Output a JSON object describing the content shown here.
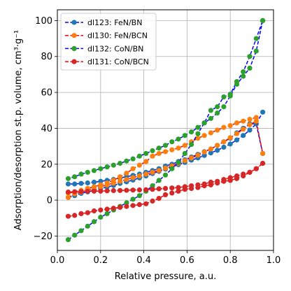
{
  "chart_data": {
    "type": "scatter",
    "xlabel": "Relative pressure, a.u.",
    "ylabel": "Adsorption/desorption st.p. volume, cm³·g⁻¹",
    "xlim": [
      0.0,
      1.0
    ],
    "ylim": [
      -28,
      106
    ],
    "xticks": [
      "0.0",
      "0.2",
      "0.4",
      "0.6",
      "0.8",
      "1.0"
    ],
    "yticks": [
      "−20",
      "0",
      "20",
      "40",
      "60",
      "80",
      "100"
    ],
    "grid": true,
    "legend_position": "top-left",
    "series": [
      {
        "name": "dl123: FeN/BN",
        "marker_color": "#1f77b4",
        "line_color": "#0000ff",
        "adsorption": {
          "x": [
            0.05,
            0.08,
            0.11,
            0.14,
            0.17,
            0.2,
            0.23,
            0.26,
            0.29,
            0.32,
            0.35,
            0.38,
            0.41,
            0.44,
            0.47,
            0.5,
            0.53,
            0.56,
            0.59,
            0.62,
            0.65,
            0.68,
            0.71,
            0.74,
            0.77,
            0.8,
            0.83,
            0.86,
            0.89,
            0.92,
            0.95
          ],
          "y": [
            1.5,
            2.5,
            3.8,
            4.6,
            5.5,
            6.5,
            7.3,
            8.2,
            9.3,
            10.2,
            11.2,
            12.4,
            13.5,
            14.8,
            16.0,
            17.3,
            18.5,
            19.8,
            21.0,
            22.3,
            23.5,
            24.9,
            26.3,
            27.8,
            29.5,
            31.3,
            33.5,
            36.0,
            39.0,
            42.5,
            49.0
          ]
        },
        "desorption": {
          "x": [
            0.95,
            0.92,
            0.89,
            0.86,
            0.83,
            0.8,
            0.77,
            0.74,
            0.71,
            0.68,
            0.65,
            0.62,
            0.59,
            0.56,
            0.53,
            0.5,
            0.47,
            0.44,
            0.41,
            0.38,
            0.35,
            0.32,
            0.29,
            0.26,
            0.23,
            0.2,
            0.17,
            0.14,
            0.11,
            0.08,
            0.05
          ],
          "y": [
            26.0,
            42.5,
            42.5,
            40.0,
            37.5,
            34.5,
            32.5,
            30.5,
            28.5,
            27.0,
            25.5,
            24.0,
            22.5,
            21.5,
            20.0,
            19.0,
            17.5,
            16.5,
            15.5,
            14.5,
            13.8,
            13.0,
            12.3,
            11.5,
            11.0,
            10.5,
            10.0,
            9.6,
            9.3,
            9.0,
            9.0
          ]
        }
      },
      {
        "name": "dl130: FeN/BCN",
        "marker_color": "#ff7f0e",
        "line_color": "#ff0000",
        "adsorption": {
          "x": [
            0.05,
            0.08,
            0.11,
            0.14,
            0.17,
            0.2,
            0.23,
            0.26,
            0.29,
            0.32,
            0.35,
            0.38,
            0.41,
            0.44,
            0.47,
            0.5,
            0.53,
            0.56,
            0.59,
            0.62,
            0.65,
            0.68,
            0.71,
            0.74,
            0.77,
            0.8,
            0.83,
            0.86,
            0.89,
            0.92,
            0.95
          ],
          "y": [
            1.5,
            3.5,
            4.5,
            5.5,
            6.5,
            7.5,
            8.5,
            9.5,
            10.5,
            11.5,
            12.5,
            13.5,
            14.5,
            15.5,
            16.5,
            17.8,
            19.0,
            20.5,
            22.0,
            23.5,
            25.0,
            26.8,
            28.5,
            30.5,
            32.5,
            34.8,
            37.0,
            39.5,
            42.0,
            44.0,
            26.0
          ]
        },
        "desorption": {
          "x": [
            0.92,
            0.89,
            0.86,
            0.83,
            0.8,
            0.77,
            0.74,
            0.71,
            0.68,
            0.65,
            0.62,
            0.59,
            0.56,
            0.53,
            0.5,
            0.47,
            0.44,
            0.41,
            0.38,
            0.35,
            0.32,
            0.29,
            0.26,
            0.23,
            0.2,
            0.17,
            0.14,
            0.11,
            0.08,
            0.05
          ],
          "y": [
            46.0,
            45.0,
            44.0,
            43.0,
            41.5,
            40.5,
            39.0,
            37.5,
            36.0,
            34.5,
            32.5,
            30.5,
            29.0,
            28.0,
            27.0,
            26.0,
            24.5,
            21.5,
            19.5,
            17.5,
            15.0,
            13.0,
            11.0,
            9.5,
            8.5,
            7.5,
            6.5,
            5.5,
            4.5,
            4.0
          ]
        }
      },
      {
        "name": "dl132: CoN/BN",
        "marker_color": "#2ca02c",
        "line_color": "#0000ff",
        "adsorption": {
          "x": [
            0.05,
            0.08,
            0.11,
            0.14,
            0.17,
            0.2,
            0.23,
            0.26,
            0.29,
            0.32,
            0.35,
            0.38,
            0.41,
            0.44,
            0.47,
            0.5,
            0.53,
            0.56,
            0.59,
            0.62,
            0.65,
            0.68,
            0.71,
            0.74,
            0.77,
            0.8,
            0.83,
            0.86,
            0.89,
            0.92,
            0.95
          ],
          "y": [
            -22.0,
            -19.5,
            -17.0,
            -14.5,
            -12.0,
            -9.5,
            -7.5,
            -5.5,
            -3.5,
            -1.5,
            0.5,
            2.5,
            5.0,
            8.0,
            11.0,
            14.0,
            17.5,
            21.0,
            26.0,
            31.0,
            37.0,
            43.0,
            50.0,
            52.0,
            57.5,
            59.0,
            66.0,
            71.5,
            80.0,
            90.0,
            100.0
          ]
        },
        "desorption": {
          "x": [
            0.95,
            0.92,
            0.89,
            0.86,
            0.83,
            0.8,
            0.77,
            0.74,
            0.71,
            0.68,
            0.65,
            0.62,
            0.59,
            0.56,
            0.53,
            0.5,
            0.47,
            0.44,
            0.41,
            0.38,
            0.35,
            0.32,
            0.29,
            0.26,
            0.23,
            0.2,
            0.17,
            0.14,
            0.11,
            0.08,
            0.05
          ],
          "y": [
            100.0,
            83.0,
            73.5,
            69.0,
            64.5,
            58.0,
            52.0,
            48.5,
            45.5,
            43.0,
            40.5,
            38.0,
            36.0,
            34.0,
            32.5,
            30.5,
            29.0,
            27.5,
            26.0,
            24.5,
            23.0,
            21.8,
            20.5,
            19.5,
            18.5,
            17.5,
            16.5,
            15.5,
            14.5,
            13.0,
            12.0
          ]
        }
      },
      {
        "name": "dl131: CoN/BCN",
        "marker_color": "#d62728",
        "line_color": "#ff0000",
        "adsorption": {
          "x": [
            0.05,
            0.08,
            0.11,
            0.14,
            0.17,
            0.2,
            0.23,
            0.26,
            0.29,
            0.32,
            0.35,
            0.38,
            0.41,
            0.44,
            0.47,
            0.5,
            0.53,
            0.56,
            0.59,
            0.62,
            0.65,
            0.68,
            0.71,
            0.74,
            0.77,
            0.8,
            0.83,
            0.86,
            0.89,
            0.92,
            0.95
          ],
          "y": [
            -9.0,
            -8.5,
            -7.5,
            -7.0,
            -6.0,
            -5.5,
            -5.0,
            -4.5,
            -4.0,
            -3.5,
            -3.0,
            -2.5,
            -2.0,
            -0.5,
            1.0,
            3.0,
            4.0,
            5.0,
            6.0,
            6.5,
            7.0,
            8.0,
            8.5,
            9.5,
            10.5,
            11.0,
            12.0,
            13.5,
            15.5,
            17.5,
            20.5
          ]
        },
        "desorption": {
          "x": [
            0.95,
            0.92,
            0.89,
            0.86,
            0.83,
            0.8,
            0.77,
            0.74,
            0.71,
            0.68,
            0.65,
            0.62,
            0.59,
            0.56,
            0.53,
            0.5,
            0.47,
            0.44,
            0.41,
            0.38,
            0.35,
            0.32,
            0.29,
            0.26,
            0.23,
            0.2,
            0.17,
            0.14,
            0.11,
            0.08,
            0.05
          ],
          "y": [
            20.5,
            17.5,
            15.5,
            14.5,
            13.5,
            12.5,
            11.5,
            10.5,
            10.0,
            9.0,
            8.5,
            8.0,
            7.5,
            7.0,
            6.8,
            6.5,
            6.3,
            6.0,
            5.8,
            5.7,
            5.6,
            5.5,
            5.4,
            5.3,
            5.2,
            5.0,
            5.0,
            4.9,
            4.8,
            4.7,
            4.5
          ]
        }
      }
    ]
  }
}
